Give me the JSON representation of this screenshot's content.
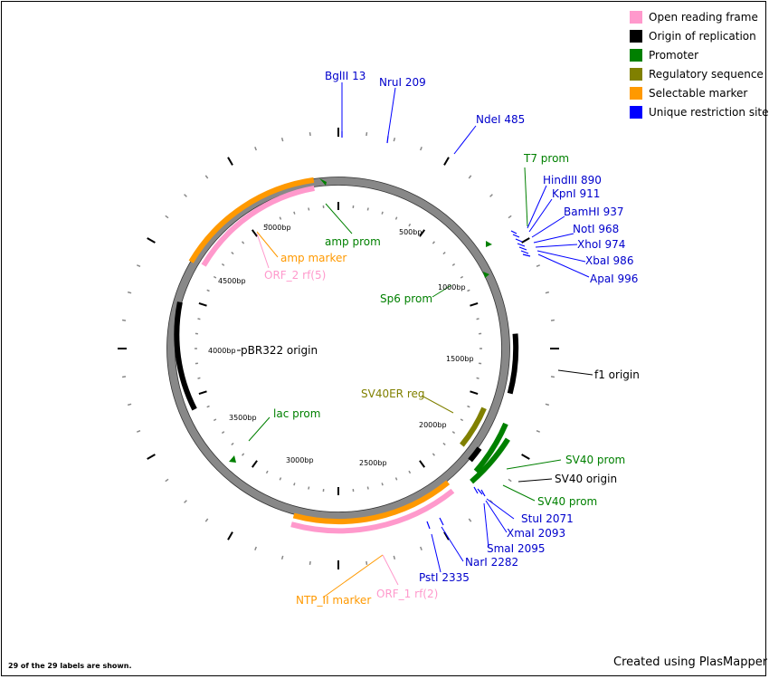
{
  "plasmid_name": "pBR322 origin",
  "legend": [
    {
      "label": "Open reading frame",
      "color": "#ff99cc"
    },
    {
      "label": "Origin of replication",
      "color": "#000000"
    },
    {
      "label": "Promoter",
      "color": "#008000"
    },
    {
      "label": "Regulatory sequence",
      "color": "#808000"
    },
    {
      "label": "Selectable marker",
      "color": "#ff9900"
    },
    {
      "label": "Unique restriction site",
      "color": "#0000ff"
    }
  ],
  "ticks": [
    {
      "label": "500bp",
      "bp": 500
    },
    {
      "label": "1000bp",
      "bp": 1000
    },
    {
      "label": "1500bp",
      "bp": 1500
    },
    {
      "label": "2000bp",
      "bp": 2000
    },
    {
      "label": "2500bp",
      "bp": 2500
    },
    {
      "label": "3000bp",
      "bp": 3000
    },
    {
      "label": "3500bp",
      "bp": 3500
    },
    {
      "label": "4000bp",
      "bp": 4000
    },
    {
      "label": "4500bp",
      "bp": 4500
    },
    {
      "label": "5000bp",
      "bp": 5000
    }
  ],
  "feature_labels": [
    {
      "text": "amp prom",
      "color": "#008000"
    },
    {
      "text": "amp marker",
      "color": "#ff9900"
    },
    {
      "text": "ORF_2 rf(5)",
      "color": "#ff99cc"
    },
    {
      "text": "Sp6 prom",
      "color": "#008000"
    },
    {
      "text": "T7 prom",
      "color": "#008000"
    },
    {
      "text": "f1 origin",
      "color": "#000000"
    },
    {
      "text": "SV40ER reg",
      "color": "#808000"
    },
    {
      "text": "SV40 prom",
      "color": "#008000"
    },
    {
      "text": "SV40 origin",
      "color": "#000000"
    },
    {
      "text": "SV40 prom",
      "color": "#008000"
    },
    {
      "text": "lac prom",
      "color": "#008000"
    },
    {
      "text": "NTP_II marker",
      "color": "#ff9900"
    },
    {
      "text": "ORF_1 rf(2)",
      "color": "#ff99cc"
    }
  ],
  "restriction_sites": [
    {
      "text": "BglII 13"
    },
    {
      "text": "NruI 209"
    },
    {
      "text": "NdeI 485"
    },
    {
      "text": "HindIII 890"
    },
    {
      "text": "KpnI 911"
    },
    {
      "text": "BamHI 937"
    },
    {
      "text": "NotI 968"
    },
    {
      "text": "XhoI 974"
    },
    {
      "text": "XbaI 986"
    },
    {
      "text": "ApaI 996"
    },
    {
      "text": "StuI 2071"
    },
    {
      "text": "XmaI 2093"
    },
    {
      "text": "SmaI 2095"
    },
    {
      "text": "NarI 2282"
    },
    {
      "text": "PstI 2335"
    }
  ],
  "count_note": "29 of the 29 labels are shown.",
  "credit": "Created using PlasMapper"
}
